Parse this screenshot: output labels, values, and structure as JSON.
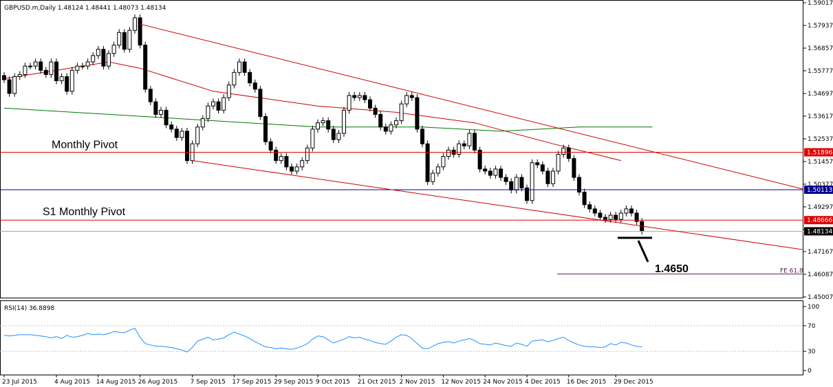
{
  "chart_data": {
    "type": "candlestick",
    "header": "GBPUSD.m,Daily  1.48124 1.48441 1.48073 1.48134",
    "price_axis": {
      "ylim": [
        1.45007,
        1.59017
      ],
      "ticks": [
        "1.59017",
        "1.57937",
        "1.56857",
        "1.55777",
        "1.54697",
        "1.53617",
        "1.52537",
        "1.51457",
        "1.50377",
        "1.49297",
        "1.48217",
        "1.47167",
        "1.46087",
        "1.45007"
      ]
    },
    "date_labels": [
      {
        "label": "23 Jul 2015",
        "i": 0
      },
      {
        "label": "4 Aug 2015",
        "i": 10
      },
      {
        "label": "14 Aug 2015",
        "i": 18
      },
      {
        "label": "26 Aug 2015",
        "i": 26
      },
      {
        "label": "7 Sep 2015",
        "i": 36
      },
      {
        "label": "17 Sep 2015",
        "i": 44
      },
      {
        "label": "29 Sep 2015",
        "i": 52
      },
      {
        "label": "9 Oct 2015",
        "i": 60
      },
      {
        "label": "21 Oct 2015",
        "i": 68
      },
      {
        "label": "2 Nov 2015",
        "i": 76
      },
      {
        "label": "12 Nov 2015",
        "i": 84
      },
      {
        "label": "24 Nov 2015",
        "i": 92
      },
      {
        "label": "4 Dec 2015",
        "i": 100
      },
      {
        "label": "16 Dec 2015",
        "i": 108
      },
      {
        "label": "29 Dec 2015",
        "i": 117
      }
    ],
    "closes": [
      1.5535,
      1.547,
      1.555,
      1.556,
      1.56,
      1.56,
      1.562,
      1.558,
      1.556,
      1.562,
      1.553,
      1.555,
      1.548,
      1.558,
      1.56,
      1.56,
      1.562,
      1.565,
      1.568,
      1.56,
      1.566,
      1.57,
      1.576,
      1.568,
      1.577,
      1.583,
      1.57,
      1.549,
      1.543,
      1.537,
      1.539,
      1.532,
      1.53,
      1.526,
      1.529,
      1.515,
      1.523,
      1.531,
      1.535,
      1.541,
      1.543,
      1.539,
      1.545,
      1.551,
      1.557,
      1.562,
      1.557,
      1.552,
      1.549,
      1.536,
      1.524,
      1.52,
      1.515,
      1.517,
      1.512,
      1.51,
      1.512,
      1.515,
      1.521,
      1.53,
      1.533,
      1.534,
      1.53,
      1.525,
      1.528,
      1.539,
      1.546,
      1.545,
      1.546,
      1.544,
      1.54,
      1.537,
      1.531,
      1.529,
      1.532,
      1.534,
      1.542,
      1.546,
      1.545,
      1.53,
      1.523,
      1.505,
      1.509,
      1.512,
      1.517,
      1.52,
      1.518,
      1.523,
      1.522,
      1.528,
      1.52,
      1.511,
      1.51,
      1.508,
      1.511,
      1.507,
      1.505,
      1.501,
      1.507,
      1.502,
      1.496,
      1.514,
      1.513,
      1.51,
      1.504,
      1.51,
      1.518,
      1.521,
      1.516,
      1.507,
      1.5,
      1.494,
      1.492,
      1.49,
      1.488,
      1.487,
      1.489,
      1.487,
      1.49,
      1.492,
      1.49,
      1.486,
      1.4813
    ],
    "moving_averages": [
      {
        "color": "#cc0000",
        "points": [
          [
            0,
            1.554
          ],
          [
            20,
            1.562
          ],
          [
            26,
            1.559
          ],
          [
            40,
            1.548
          ],
          [
            60,
            1.541
          ],
          [
            75,
            1.538
          ],
          [
            90,
            1.533
          ],
          [
            105,
            1.523
          ],
          [
            118,
            1.515
          ]
        ]
      },
      {
        "color": "#007700",
        "points": [
          [
            0,
            1.54
          ],
          [
            20,
            1.537
          ],
          [
            40,
            1.534
          ],
          [
            60,
            1.531
          ],
          [
            80,
            1.531
          ],
          [
            95,
            1.529
          ],
          [
            110,
            1.531
          ],
          [
            124,
            1.531
          ]
        ]
      }
    ],
    "trend_lines": [
      {
        "color": "#cc0000",
        "from": [
          26,
          1.58
        ],
        "to": [
          160,
          1.497
        ]
      },
      {
        "color": "#cc0000",
        "from": [
          36,
          1.515
        ],
        "to": [
          160,
          1.47
        ]
      }
    ],
    "levels": [
      {
        "name": "Monthly Pivot",
        "value": 1.51896,
        "label": "1.51896",
        "color": "#e00000",
        "tag_bg": "#e00000"
      },
      {
        "name": "",
        "value": 1.50113,
        "label": "1.50113",
        "color": "#00008b",
        "tag_bg": "#00008b"
      },
      {
        "name": "S1 Monthly Pivot",
        "value": 1.48666,
        "label": "1.48666",
        "color": "#e00000",
        "tag_bg": "#e00000"
      },
      {
        "name": "",
        "value": 1.48134,
        "label": "1.48134",
        "color": "#aaaaaa",
        "tag_bg": "#000000"
      }
    ],
    "annotations": [
      {
        "text": "Monthly Pivot",
        "level_index": 0
      },
      {
        "text": "S1 Monthly Pivot",
        "level_index": 2
      },
      {
        "text": "1.4650"
      },
      {
        "text": "FE 61.8"
      }
    ],
    "fe_level": 1.461,
    "rsi": {
      "label": "RSI(14) 36.8898",
      "ylim": [
        0,
        100
      ],
      "ticks": [
        "100",
        "70",
        "30",
        "0"
      ],
      "values": [
        55,
        54,
        55,
        56,
        56,
        56,
        55,
        54,
        53,
        51,
        53,
        50,
        55,
        52,
        53,
        55,
        58,
        56,
        57,
        56,
        58,
        61,
        60,
        59,
        63,
        66,
        52,
        42,
        40,
        38,
        38,
        37,
        36,
        34,
        32,
        29,
        36,
        46,
        49,
        52,
        48,
        49,
        51,
        56,
        60,
        57,
        54,
        50,
        45,
        41,
        37,
        36,
        34,
        35,
        34,
        33,
        35,
        38,
        42,
        49,
        54,
        53,
        48,
        43,
        46,
        49,
        53,
        51,
        52,
        49,
        47,
        44,
        42,
        41,
        46,
        52,
        56,
        55,
        50,
        42,
        35,
        34,
        38,
        42,
        44,
        45,
        43,
        46,
        48,
        50,
        47,
        42,
        41,
        40,
        43,
        41,
        39,
        38,
        43,
        41,
        38,
        46,
        47,
        48,
        45,
        47,
        50,
        52,
        47,
        43,
        40,
        38,
        37,
        37,
        36,
        37,
        42,
        40,
        44,
        43,
        40,
        38,
        37
      ]
    }
  }
}
